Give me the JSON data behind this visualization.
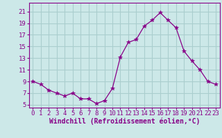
{
  "x": [
    0,
    1,
    2,
    3,
    4,
    5,
    6,
    7,
    8,
    9,
    10,
    11,
    12,
    13,
    14,
    15,
    16,
    17,
    18,
    19,
    20,
    21,
    22,
    23
  ],
  "y": [
    9,
    8.5,
    7.5,
    7,
    6.5,
    7,
    6,
    6,
    5.2,
    5.7,
    7.8,
    13.2,
    15.7,
    16.2,
    18.5,
    19.5,
    20.8,
    19.5,
    18.2,
    14.2,
    12.5,
    11,
    9,
    8.5
  ],
  "line_color": "#880088",
  "marker": "*",
  "marker_size": 4,
  "bg_color": "#cce8e8",
  "grid_color": "#aacece",
  "xlabel": "Windchill (Refroidissement éolien,°C)",
  "xlim": [
    -0.5,
    23.5
  ],
  "ylim": [
    4.5,
    22.5
  ],
  "yticks": [
    5,
    7,
    9,
    11,
    13,
    15,
    17,
    19,
    21
  ],
  "xticks": [
    0,
    1,
    2,
    3,
    4,
    5,
    6,
    7,
    8,
    9,
    10,
    11,
    12,
    13,
    14,
    15,
    16,
    17,
    18,
    19,
    20,
    21,
    22,
    23
  ],
  "label_color": "#880088",
  "tick_color": "#880088",
  "xlabel_fontsize": 7,
  "tick_fontsize": 6.5
}
